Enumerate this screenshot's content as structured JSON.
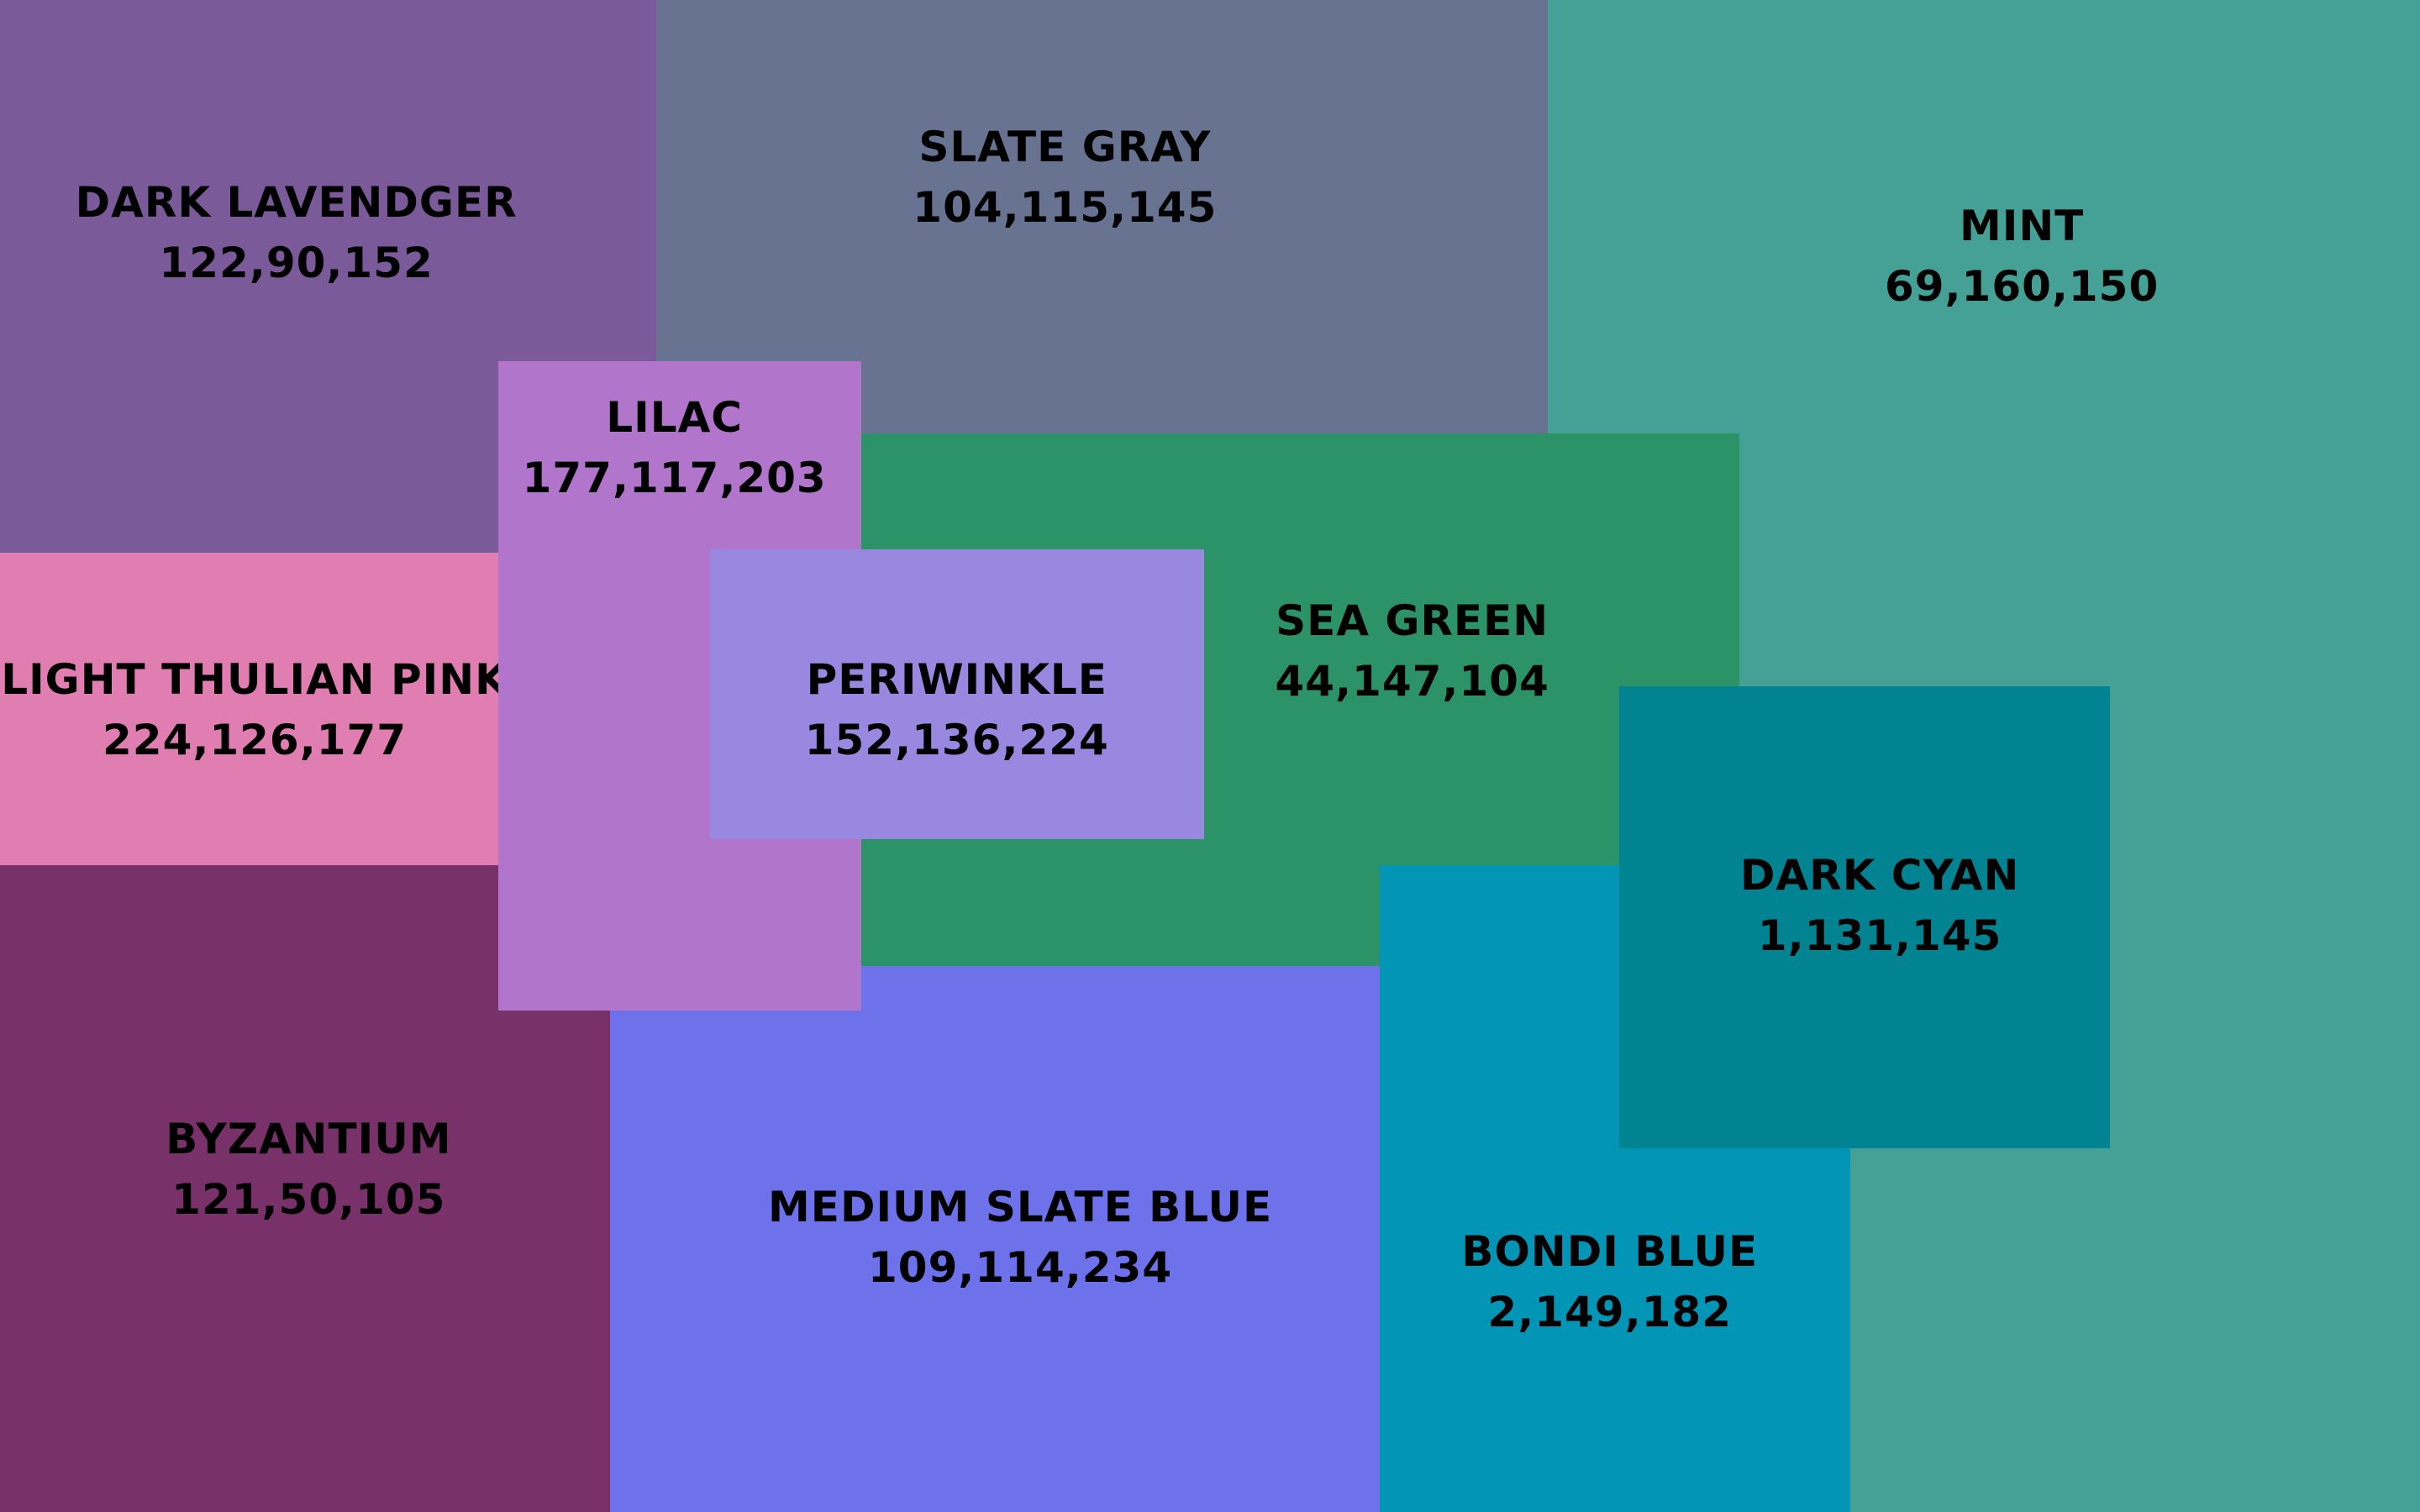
{
  "blocks": [
    {
      "name": "DARK LAVENDGER",
      "rgb": "122,90,152"
    },
    {
      "name": "SLATE GRAY",
      "rgb": "104,115,145"
    },
    {
      "name": "MINT",
      "rgb": "69,160,150"
    },
    {
      "name": "LIGHT THULIAN PINK",
      "rgb": "224,126,177"
    },
    {
      "name": "BYZANTIUM",
      "rgb": "121,50,105"
    },
    {
      "name": "SEA GREEN",
      "rgb": "44,147,104"
    },
    {
      "name": "MEDIUM SLATE BLUE",
      "rgb": "109,114,234"
    },
    {
      "name": "BONDI BLUE",
      "rgb": "2,149,182"
    },
    {
      "name": "LILAC",
      "rgb": "177,117,203"
    },
    {
      "name": "PERIWINKLE",
      "rgb": "152,136,224"
    },
    {
      "name": "DARK CYAN",
      "rgb": "1,131,145"
    }
  ]
}
